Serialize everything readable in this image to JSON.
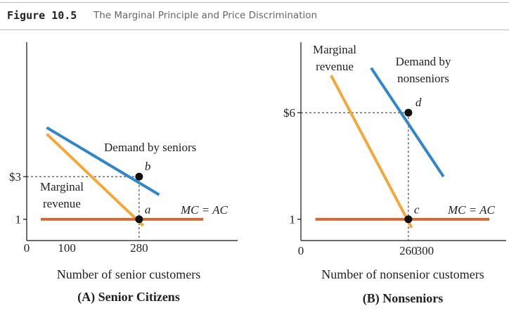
{
  "figure": {
    "number": "Figure 10.5",
    "caption": "The Marginal Principle and Price Discrimination"
  },
  "chart_data": [
    {
      "type": "line",
      "panel_title": "(A) Senior Citizens",
      "xlabel": "Number of senior customers",
      "ylabel": "",
      "x_ticks": [
        {
          "value": 0,
          "label": "0"
        },
        {
          "value": 100,
          "label": "100"
        },
        {
          "value": 280,
          "label": "280"
        }
      ],
      "y_ticks": [
        {
          "value": 1,
          "label": "1"
        },
        {
          "value": 3,
          "label": "$3"
        }
      ],
      "xlim": [
        0,
        440
      ],
      "ylim": [
        0,
        10
      ],
      "series": [
        {
          "key": "demand",
          "name": "Demand by seniors",
          "color": "#2f86c8",
          "x": [
            50,
            330
          ],
          "y": [
            5.3,
            2.15
          ]
        },
        {
          "key": "mr",
          "name": "Marginal revenue",
          "color": "#f5a83a",
          "x": [
            50,
            290
          ],
          "y": [
            5.0,
            0.7
          ]
        },
        {
          "key": "mcac",
          "name": "MC = AC",
          "color": "#cf6a34",
          "x": [
            35,
            440
          ],
          "y": [
            1,
            1
          ]
        }
      ],
      "points": [
        {
          "label": "b",
          "x": 280,
          "y": 3
        },
        {
          "label": "a",
          "x": 280,
          "y": 1
        }
      ],
      "guides": [
        {
          "from": [
            0,
            3
          ],
          "to": [
            280,
            3
          ]
        },
        {
          "from": [
            280,
            3
          ],
          "to": [
            280,
            0
          ]
        }
      ],
      "grid": false,
      "legend": "none"
    },
    {
      "type": "line",
      "panel_title": "(B) Nonseniors",
      "xlabel": "Number of nonsenior customers",
      "ylabel": "",
      "x_ticks": [
        {
          "value": 0,
          "label": "0"
        },
        {
          "value": 260,
          "label": "260"
        },
        {
          "value": 300,
          "label": "300"
        }
      ],
      "y_ticks": [
        {
          "value": 1,
          "label": "1"
        },
        {
          "value": 6,
          "label": "$6"
        }
      ],
      "xlim": [
        0,
        456
      ],
      "ylim": [
        0,
        10
      ],
      "series": [
        {
          "key": "demand",
          "name": "Demand by nonseniors",
          "color": "#2f86c8",
          "x": [
            170,
            345
          ],
          "y": [
            8.1,
            3.0
          ]
        },
        {
          "key": "mr",
          "name": "Marginal revenue",
          "color": "#f5a83a",
          "x": [
            73,
            268
          ],
          "y": [
            7.75,
            0.6
          ]
        },
        {
          "key": "mcac",
          "name": "MC = AC",
          "color": "#cf6a34",
          "x": [
            35,
            456
          ],
          "y": [
            1,
            1
          ]
        }
      ],
      "points": [
        {
          "label": "d",
          "x": 260,
          "y": 6
        },
        {
          "label": "c",
          "x": 260,
          "y": 1
        }
      ],
      "guides": [
        {
          "from": [
            0,
            6
          ],
          "to": [
            260,
            6
          ]
        },
        {
          "from": [
            260,
            6
          ],
          "to": [
            260,
            0
          ]
        }
      ],
      "grid": false,
      "legend": "none"
    }
  ]
}
